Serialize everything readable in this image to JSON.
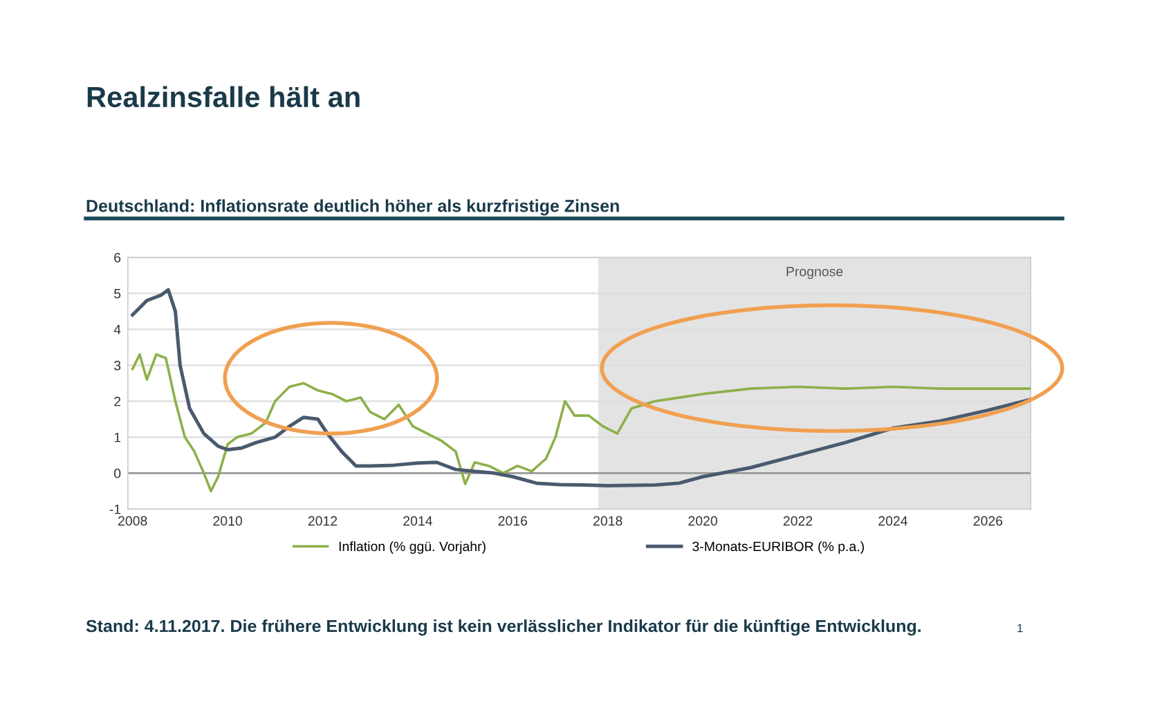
{
  "chart_data": {
    "type": "line",
    "title": "Realzinsfalle hält an",
    "subtitle": "Deutschland: Inflationsrate deutlich höher als kurzfristige Zinsen",
    "annotations": [
      "Stand: 4.11.2017. Die frühere Entwicklung ist kein verlässlicher Indikator für die künftige Entwicklung.",
      "1"
    ],
    "series": [
      {
        "name": "Inflation (% ggü. Vorjahr)",
        "color": "#8db04a",
        "x": [
          2008.0,
          2008.15,
          2008.3,
          2008.5,
          2008.7,
          2008.9,
          2009.1,
          2009.3,
          2009.5,
          2009.65,
          2009.8,
          2010.0,
          2010.2,
          2010.5,
          2010.8,
          2011.0,
          2011.3,
          2011.6,
          2011.9,
          2012.2,
          2012.5,
          2012.8,
          2013.0,
          2013.3,
          2013.6,
          2013.9,
          2014.2,
          2014.5,
          2014.8,
          2015.0,
          2015.2,
          2015.5,
          2015.8,
          2016.1,
          2016.4,
          2016.7,
          2016.9,
          2017.1,
          2017.3,
          2017.6,
          2017.9,
          2018.2,
          2018.5,
          2019.0,
          2019.5,
          2020.0,
          2021.0,
          2022.0,
          2023.0,
          2024.0,
          2025.0,
          2026.0,
          2026.9
        ],
        "values": [
          2.9,
          3.3,
          2.6,
          3.3,
          3.2,
          2.0,
          1.0,
          0.6,
          0.0,
          -0.5,
          -0.1,
          0.8,
          1.0,
          1.1,
          1.4,
          2.0,
          2.4,
          2.5,
          2.3,
          2.2,
          2.0,
          2.1,
          1.7,
          1.5,
          1.9,
          1.3,
          1.1,
          0.9,
          0.6,
          -0.3,
          0.3,
          0.2,
          0.0,
          0.2,
          0.05,
          0.4,
          1.0,
          2.0,
          1.6,
          1.6,
          1.3,
          1.1,
          1.8,
          2.0,
          2.1,
          2.2,
          2.35,
          2.4,
          2.35,
          2.4,
          2.35,
          2.35,
          2.35
        ]
      },
      {
        "name": "3-Monats-EURIBOR (% p.a.)",
        "color": "#4a5a6e",
        "x": [
          2008.0,
          2008.3,
          2008.6,
          2008.75,
          2008.9,
          2009.0,
          2009.2,
          2009.5,
          2009.8,
          2010.0,
          2010.3,
          2010.6,
          2011.0,
          2011.3,
          2011.6,
          2011.9,
          2012.1,
          2012.4,
          2012.7,
          2013.0,
          2013.5,
          2014.0,
          2014.4,
          2014.8,
          2015.2,
          2015.6,
          2016.0,
          2016.5,
          2017.0,
          2017.5,
          2018.0,
          2019.0,
          2019.5,
          2020.0,
          2021.0,
          2022.0,
          2023.0,
          2024.0,
          2025.0,
          2026.0,
          2026.9
        ],
        "values": [
          4.4,
          4.8,
          4.95,
          5.1,
          4.5,
          3.0,
          1.8,
          1.1,
          0.75,
          0.65,
          0.7,
          0.85,
          1.0,
          1.3,
          1.55,
          1.5,
          1.1,
          0.6,
          0.2,
          0.2,
          0.22,
          0.28,
          0.3,
          0.1,
          0.05,
          0.0,
          -0.1,
          -0.28,
          -0.32,
          -0.33,
          -0.35,
          -0.33,
          -0.28,
          -0.1,
          0.15,
          0.5,
          0.85,
          1.25,
          1.45,
          1.75,
          2.05
        ]
      }
    ],
    "xlim": [
      2007.9,
      2026.9
    ],
    "xticks": [
      2008,
      2010,
      2012,
      2014,
      2016,
      2018,
      2020,
      2022,
      2024,
      2026
    ],
    "ylim": [
      -1,
      6
    ],
    "yticks": [
      -1,
      0,
      1,
      2,
      3,
      4,
      5,
      6
    ],
    "bands": [
      {
        "axis": "x",
        "from": 2017.8,
        "to": 2026.9,
        "label": "Prognose",
        "color": "#e3e3e3"
      }
    ],
    "grid": "y",
    "legend": "bottom",
    "marker": "none",
    "line_style": "solid"
  }
}
